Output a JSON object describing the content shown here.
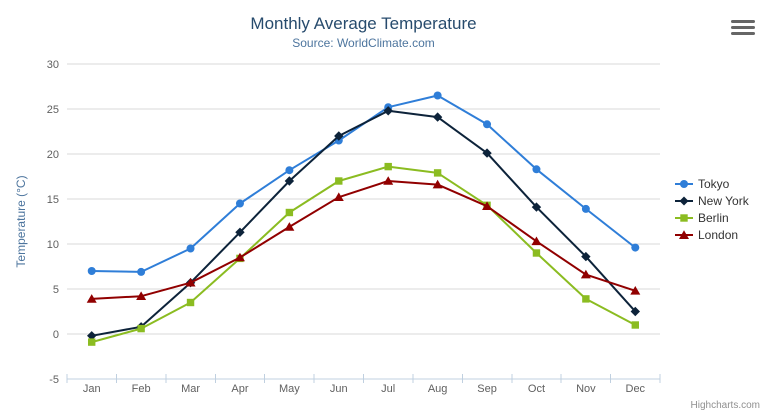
{
  "credits": "Highcharts.com",
  "export_menu": {
    "icon": "hamburger-menu-icon"
  },
  "chart_data": {
    "type": "line",
    "title": "Monthly Average Temperature",
    "subtitle": "Source: WorldClimate.com",
    "xlabel": "",
    "ylabel": "Temperature (°C)",
    "ylim": [
      -5,
      30
    ],
    "yticks": [
      -5,
      0,
      5,
      10,
      15,
      20,
      25,
      30
    ],
    "grid": true,
    "legend_position": "right",
    "categories": [
      "Jan",
      "Feb",
      "Mar",
      "Apr",
      "May",
      "Jun",
      "Jul",
      "Aug",
      "Sep",
      "Oct",
      "Nov",
      "Dec"
    ],
    "series": [
      {
        "name": "Tokyo",
        "color": "#2f7ed8",
        "marker": "circle",
        "values": [
          7.0,
          6.9,
          9.5,
          14.5,
          18.2,
          21.5,
          25.2,
          26.5,
          23.3,
          18.3,
          13.9,
          9.6
        ]
      },
      {
        "name": "New York",
        "color": "#0d233a",
        "marker": "diamond",
        "values": [
          -0.2,
          0.8,
          5.7,
          11.3,
          17.0,
          22.0,
          24.8,
          24.1,
          20.1,
          14.1,
          8.6,
          2.5
        ]
      },
      {
        "name": "Berlin",
        "color": "#8bbc21",
        "marker": "square",
        "values": [
          -0.9,
          0.6,
          3.5,
          8.4,
          13.5,
          17.0,
          18.6,
          17.9,
          14.3,
          9.0,
          3.9,
          1.0
        ]
      },
      {
        "name": "London",
        "color": "#910000",
        "marker": "triangle",
        "values": [
          3.9,
          4.2,
          5.7,
          8.5,
          11.9,
          15.2,
          17.0,
          16.6,
          14.2,
          10.3,
          6.6,
          4.8
        ]
      }
    ],
    "axis_colors": {
      "axis_line": "#c0d0e0",
      "grid_line": "#d8d8d8",
      "tick_label": "#606060",
      "axis_title": "#4d759e"
    }
  }
}
